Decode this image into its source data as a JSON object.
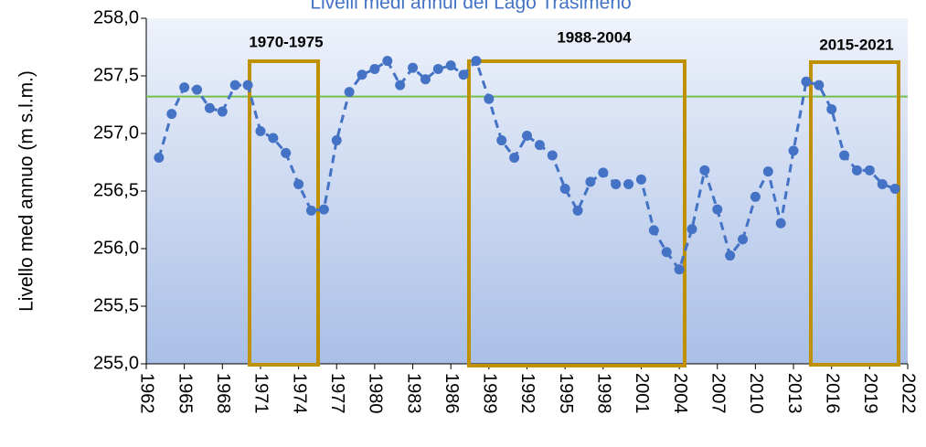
{
  "chart_data": {
    "type": "line",
    "title": "Livelli medi annui del Lago Trasimeno",
    "ylabel": "Livello med annuo  (m s.l.m.)",
    "x": [
      1963,
      1964,
      1965,
      1966,
      1967,
      1968,
      1969,
      1970,
      1971,
      1972,
      1973,
      1974,
      1975,
      1976,
      1977,
      1978,
      1979,
      1980,
      1981,
      1982,
      1983,
      1984,
      1985,
      1986,
      1987,
      1988,
      1989,
      1990,
      1991,
      1992,
      1993,
      1994,
      1995,
      1996,
      1997,
      1998,
      1999,
      2000,
      2001,
      2002,
      2003,
      2004,
      2005,
      2006,
      2007,
      2008,
      2009,
      2010,
      2011,
      2012,
      2013,
      2014,
      2015,
      2016,
      2017,
      2018,
      2019,
      2020,
      2021
    ],
    "series": [
      {
        "color": "#4472c4",
        "values": [
          256.79,
          257.17,
          257.4,
          257.38,
          257.22,
          257.19,
          257.42,
          257.42,
          257.02,
          256.96,
          256.83,
          256.56,
          256.33,
          256.34,
          256.94,
          257.36,
          257.51,
          257.56,
          257.63,
          257.42,
          257.57,
          257.47,
          257.56,
          257.59,
          257.51,
          257.63,
          257.3,
          256.94,
          256.79,
          256.98,
          256.9,
          256.81,
          256.52,
          256.33,
          256.58,
          256.66,
          256.56,
          256.56,
          256.6,
          256.16,
          255.97,
          255.82,
          256.17,
          256.68,
          256.34,
          255.94,
          256.08,
          256.45,
          256.67,
          256.22,
          256.85,
          257.45,
          257.42,
          257.21,
          256.81,
          256.68,
          256.68,
          256.56,
          256.52
        ]
      }
    ],
    "reference_line": {
      "value": 257.32,
      "color": "#70c050"
    },
    "annotations": [
      "1970-1975",
      "1988-2004",
      "2015-2021"
    ],
    "xlim": [
      1962,
      2022
    ],
    "xticks": [
      1962,
      1965,
      1968,
      1971,
      1974,
      1977,
      1980,
      1983,
      1986,
      1989,
      1992,
      1995,
      1998,
      2001,
      2004,
      2007,
      2010,
      2013,
      2016,
      2019,
      2022
    ],
    "ylim": [
      255,
      258
    ],
    "yticks": [
      {
        "value": 255,
        "label": "255,0"
      },
      {
        "value": 255.5,
        "label": "255,5"
      },
      {
        "value": 256,
        "label": "256,0"
      },
      {
        "value": 256.5,
        "label": "256,5"
      },
      {
        "value": 257,
        "label": "257,0"
      },
      {
        "value": 257.5,
        "label": "257,5"
      },
      {
        "value": 258,
        "label": "258,0"
      }
    ]
  }
}
